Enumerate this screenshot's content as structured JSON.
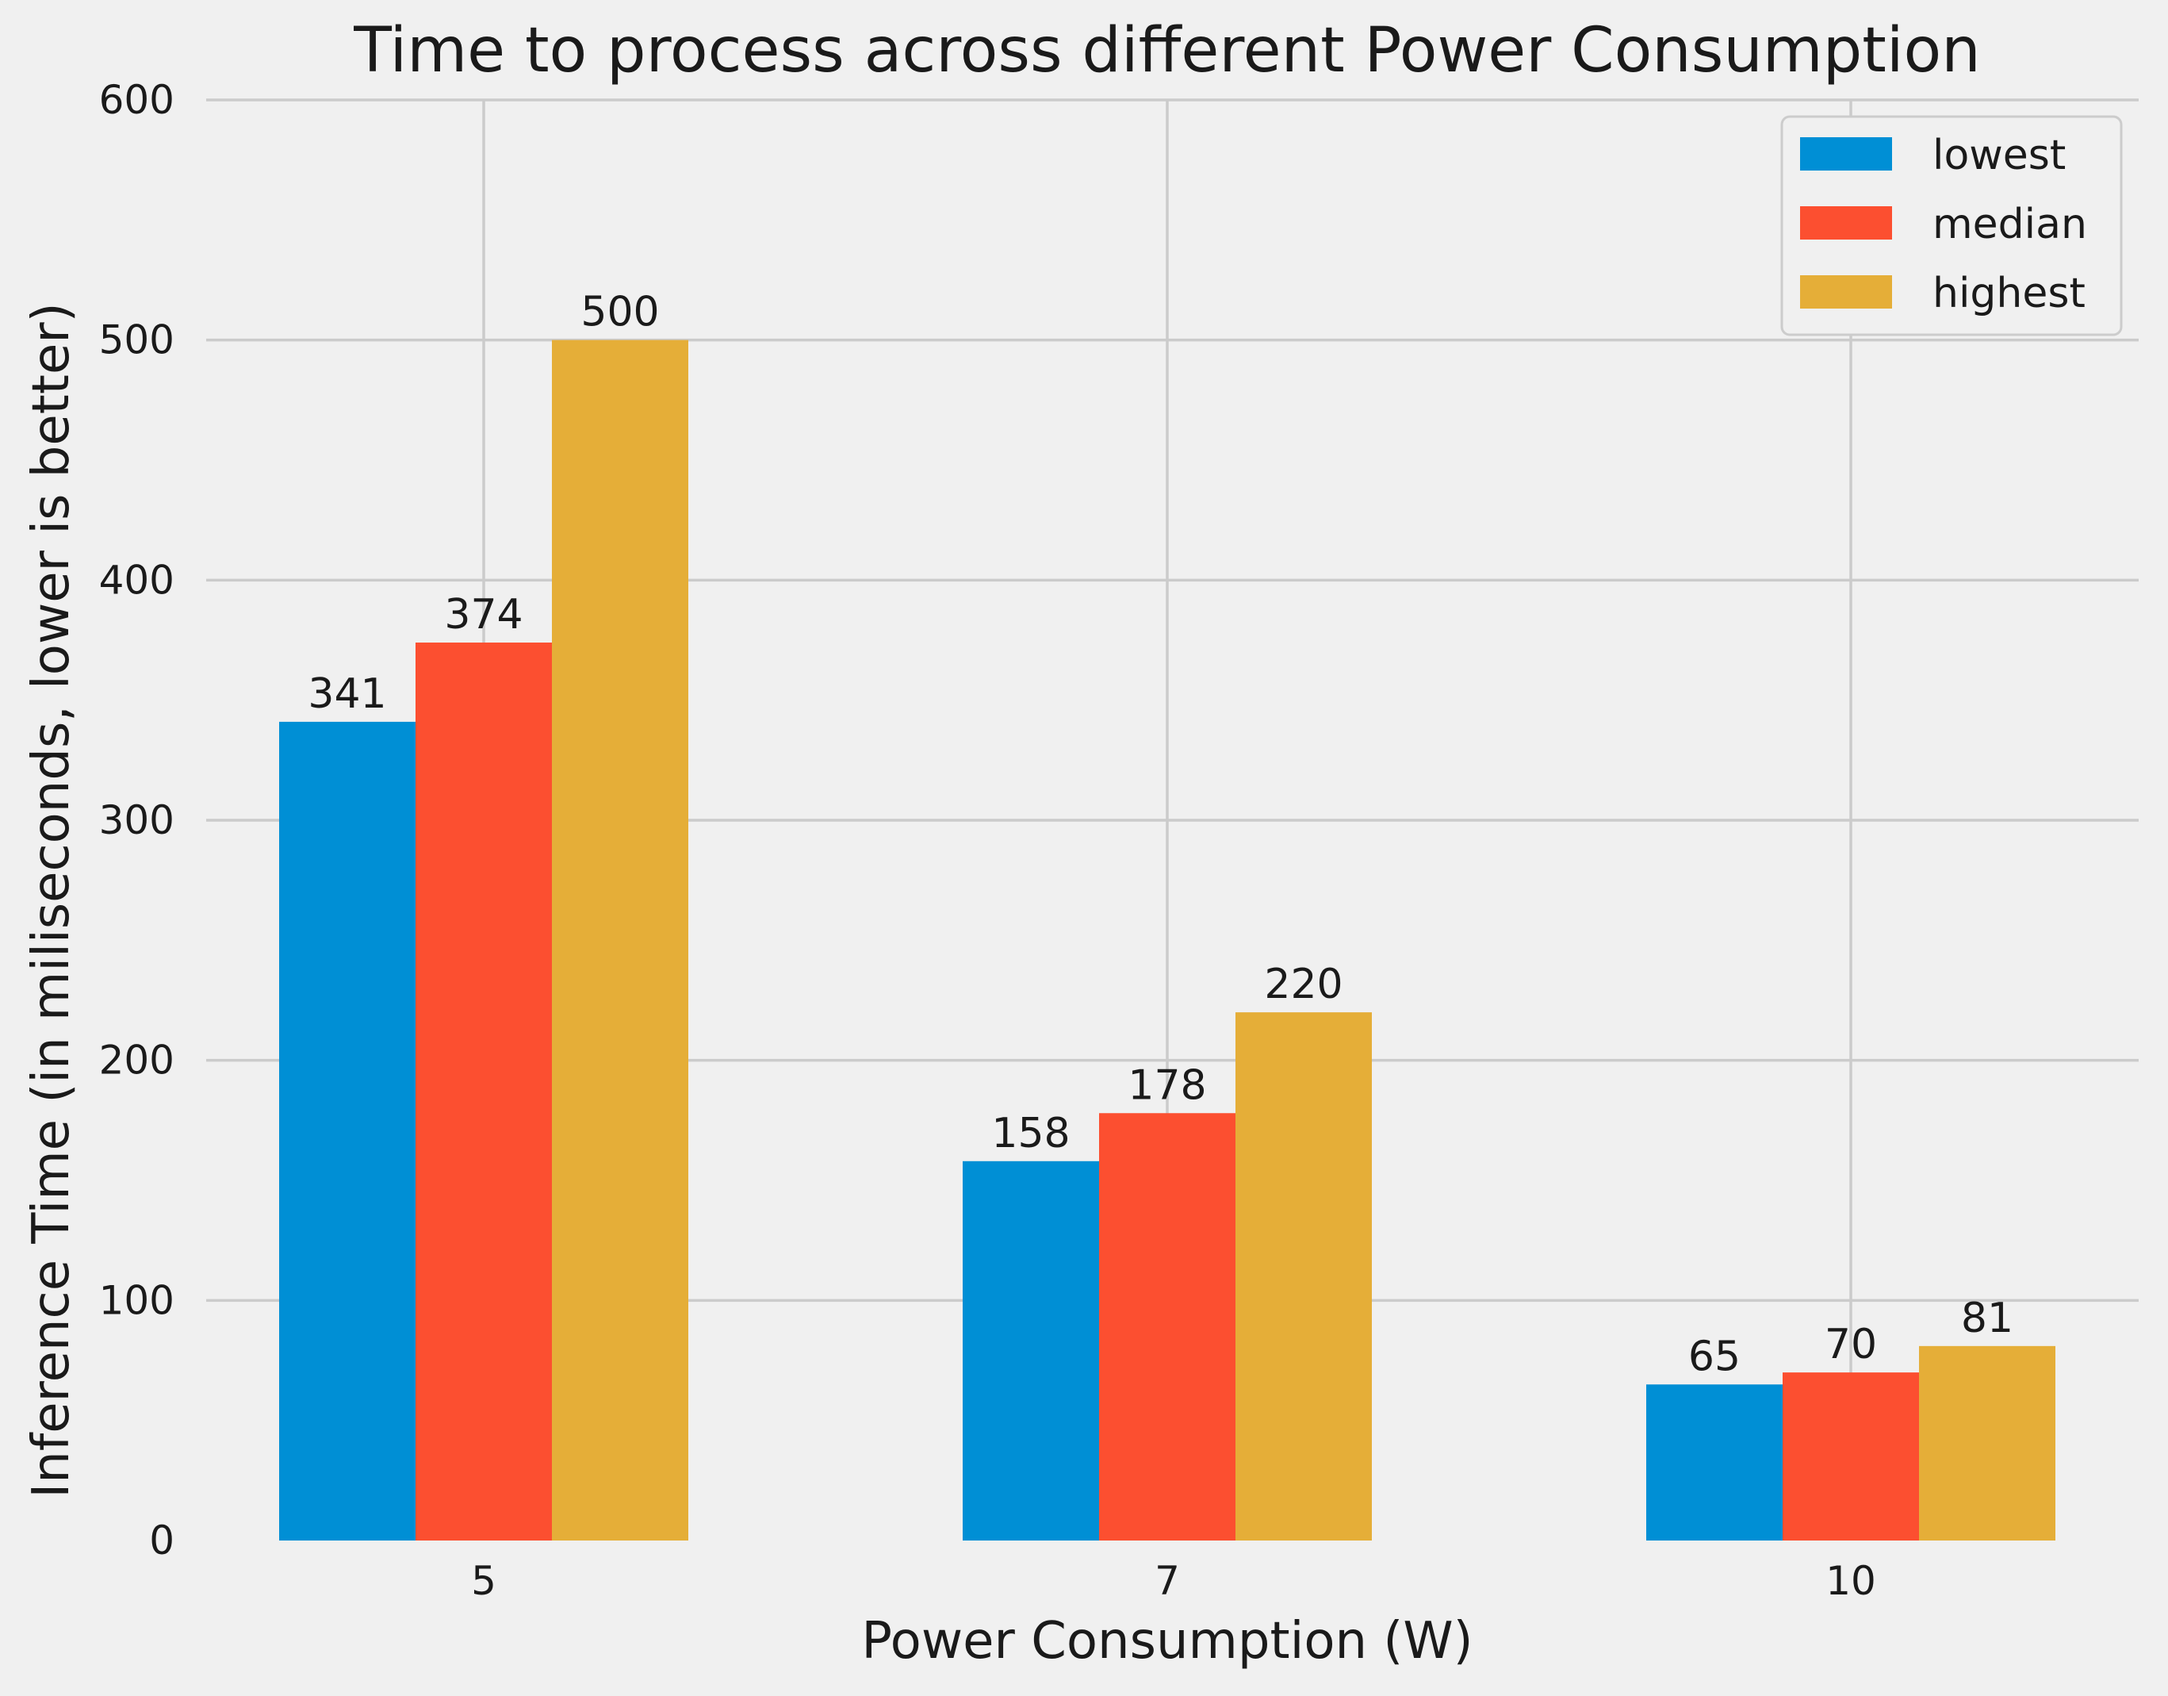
{
  "chart_data": {
    "type": "bar",
    "title": "Time to process across different Power Consumption",
    "xlabel": "Power Consumption (W)",
    "ylabel": "Inference Time (in miliseconds, lower is better)",
    "categories": [
      "5",
      "7",
      "10"
    ],
    "series": [
      {
        "name": "lowest",
        "values": [
          341,
          158,
          65
        ],
        "color": "#008fd5"
      },
      {
        "name": "median",
        "values": [
          374,
          178,
          70
        ],
        "color": "#fc4f30"
      },
      {
        "name": "highest",
        "values": [
          500,
          220,
          81
        ],
        "color": "#e5ae38"
      }
    ],
    "ylim": [
      0,
      600
    ],
    "yticks": [
      "0",
      "100",
      "200",
      "300",
      "400",
      "500",
      "600"
    ],
    "data_labels": [
      [
        "341",
        "158",
        "65"
      ],
      [
        "374",
        "178",
        "70"
      ],
      [
        "500",
        "220",
        "81"
      ]
    ],
    "grid": true,
    "legend_position": "top-right",
    "background_color": "#f0f0f0"
  }
}
